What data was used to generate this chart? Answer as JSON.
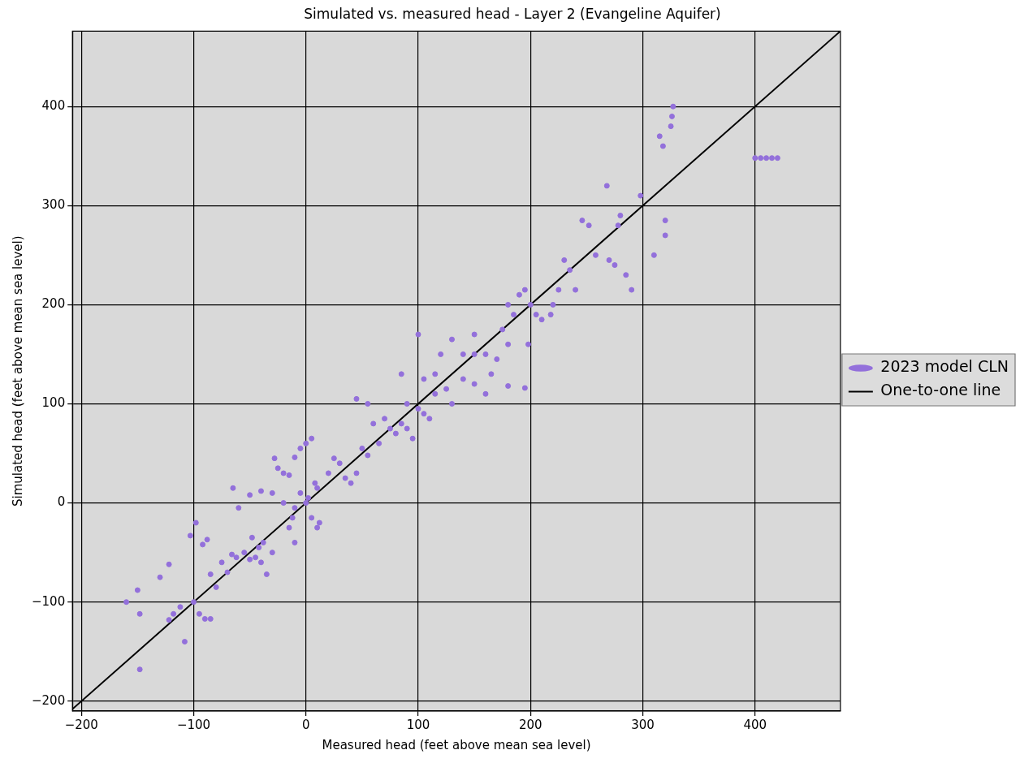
{
  "chart_data": {
    "type": "scatter",
    "title": "Simulated vs. measured head - Layer 2 (Evangeline Aquifer)",
    "xlabel": "Measured head (feet above mean sea level)",
    "ylabel": "Simulated head (feet above mean sea level)",
    "xlim": [
      -208,
      476
    ],
    "ylim": [
      -210,
      476
    ],
    "xticks": [
      -200,
      -100,
      0,
      100,
      200,
      300,
      400
    ],
    "yticks": [
      -200,
      -100,
      0,
      100,
      200,
      300,
      400
    ],
    "grid": true,
    "legend": "right",
    "marker": "circle",
    "series": [
      {
        "name": "2023 model CLN",
        "color": "#9370db",
        "x": [
          -160,
          -150,
          -148,
          -148,
          -130,
          -122,
          -122,
          -118,
          -112,
          -108,
          -103,
          -100,
          -98,
          -95,
          -90,
          -85,
          -92,
          -88,
          -85,
          -80,
          -75,
          -70,
          -66,
          -62,
          -55,
          -50,
          -45,
          -42,
          -40,
          -38,
          -35,
          -30,
          -48,
          -65,
          -60,
          -50,
          -40,
          -30,
          -28,
          -25,
          -20,
          -15,
          -10,
          -5,
          0,
          5,
          -20,
          -10,
          -5,
          0,
          2,
          5,
          8,
          10,
          12,
          -12,
          -15,
          20,
          25,
          30,
          35,
          40,
          45,
          50,
          55,
          60,
          65,
          70,
          75,
          80,
          85,
          90,
          95,
          100,
          90,
          105,
          110,
          115,
          105,
          115,
          120,
          125,
          130,
          140,
          150,
          160,
          150,
          130,
          140,
          150,
          160,
          165,
          170,
          180,
          175,
          180,
          185,
          190,
          195,
          200,
          198,
          180,
          195,
          205,
          210,
          218,
          220,
          225,
          230,
          235,
          240,
          246,
          252,
          258,
          268,
          270,
          275,
          278,
          280,
          285,
          290,
          298,
          310,
          315,
          318,
          320,
          320,
          325,
          327,
          326,
          400,
          405,
          410,
          415,
          420,
          45,
          55,
          -10,
          10,
          85,
          100
        ],
        "values": [
          -100,
          -88,
          -112,
          -168,
          -75,
          -62,
          -118,
          -112,
          -105,
          -140,
          -33,
          -100,
          -20,
          -112,
          -117,
          -117,
          -42,
          -37,
          -72,
          -85,
          -60,
          -70,
          -52,
          -55,
          -50,
          -57,
          -55,
          -45,
          -60,
          -40,
          -72,
          -50,
          -35,
          15,
          -5,
          8,
          12,
          10,
          45,
          35,
          30,
          28,
          46,
          55,
          60,
          65,
          0,
          -5,
          10,
          0,
          5,
          -15,
          20,
          15,
          -20,
          -15,
          -25,
          30,
          45,
          40,
          25,
          20,
          30,
          55,
          48,
          80,
          60,
          85,
          75,
          70,
          80,
          75,
          65,
          95,
          100,
          90,
          85,
          110,
          125,
          130,
          150,
          115,
          165,
          150,
          150,
          150,
          170,
          100,
          125,
          120,
          110,
          130,
          145,
          160,
          175,
          200,
          190,
          210,
          215,
          200,
          160,
          118,
          116,
          190,
          185,
          190,
          200,
          215,
          245,
          235,
          215,
          285,
          280,
          250,
          320,
          245,
          240,
          280,
          290,
          230,
          215,
          310,
          250,
          370,
          360,
          285,
          270,
          380,
          400,
          390,
          348,
          348,
          348,
          348,
          348,
          105,
          100,
          -40,
          -25,
          130,
          170
        ]
      },
      {
        "name": "One-to-one line",
        "type": "line",
        "color": "#000000",
        "marker": "none",
        "x": [
          -208,
          476
        ],
        "values": [
          -208,
          476
        ]
      }
    ]
  }
}
